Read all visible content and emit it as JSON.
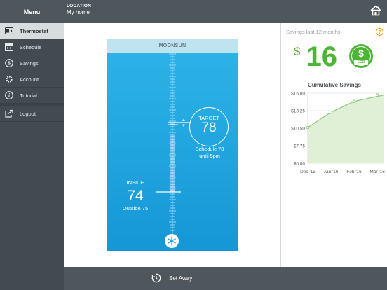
{
  "menu": {
    "title": "Menu"
  },
  "location": {
    "label": "LOCATION",
    "value": "My home"
  },
  "sidebar": {
    "items": [
      {
        "label": "Thermostat",
        "icon": "thermostat-icon",
        "active": true
      },
      {
        "label": "Schedule",
        "icon": "calendar-icon"
      },
      {
        "label": "Savings",
        "icon": "dollar-icon"
      },
      {
        "label": "Account",
        "icon": "gear-icon"
      },
      {
        "label": "Tutorial",
        "icon": "info-icon"
      },
      {
        "label": "Logout",
        "icon": "logout-icon"
      }
    ]
  },
  "thermostat": {
    "header": "MOONSUN",
    "target_label": "TARGET",
    "target_value": "78",
    "schedule_line1": "Schedule 78",
    "schedule_line2": "until 5pm",
    "inside_label": "INSIDE",
    "inside_value": "74",
    "outside_text": "Outside 75",
    "mode_icon": "snowflake-icon"
  },
  "bottom": {
    "set_away_label": "Set Away"
  },
  "savings": {
    "header": "Savings last 12 months",
    "currency": "$",
    "amount": "16",
    "badge_symbol": "$",
    "badge_label": "ECO"
  },
  "colors": {
    "accent_green": "#4cb535",
    "thermostat_blue": "#1ea4dd",
    "help_orange": "#f39a1a"
  },
  "chart_data": {
    "type": "area",
    "title": "Cumulative Savings",
    "categories": [
      "Dec '15",
      "Jan '16",
      "Feb '16",
      "Mar '16"
    ],
    "x": [
      0,
      1,
      2,
      3,
      3.3
    ],
    "values": [
      10.6,
      13.0,
      14.7,
      15.7
    ],
    "series": [
      {
        "values": [
          10.6,
          13.0,
          14.7,
          15.5,
          15.7
        ]
      }
    ],
    "ytick_labels": [
      "$16.00",
      "$13.25",
      "$10.50",
      "$7.75",
      "$5.00"
    ],
    "yticks": [
      16,
      13.25,
      10.5,
      7.75,
      5
    ],
    "ylim": [
      5,
      16
    ],
    "grid": true
  }
}
